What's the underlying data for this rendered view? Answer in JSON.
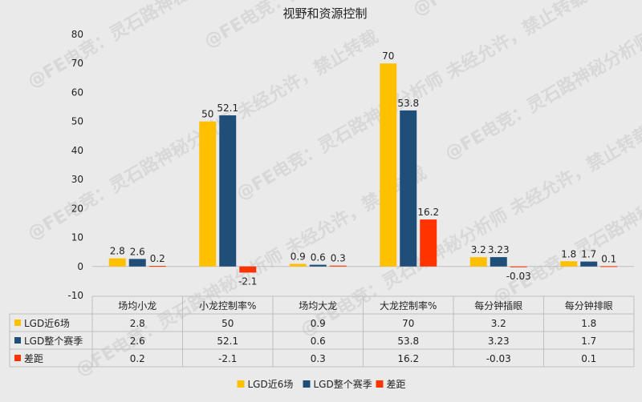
{
  "chart_data": {
    "type": "bar",
    "title": "视野和资源控制",
    "categories": [
      "场均小龙",
      "小龙控制率%",
      "场均大龙",
      "大龙控制率%",
      "每分钟插眼",
      "每分钟排眼"
    ],
    "series": [
      {
        "name": "LGD近6场",
        "color": "#ffc000",
        "values": [
          2.8,
          50,
          0.9,
          70,
          3.2,
          1.8
        ],
        "labels": [
          "2.8",
          "50",
          "0.9",
          "70",
          "3.2",
          "1.8"
        ]
      },
      {
        "name": "LGD整个赛季",
        "color": "#1f4e79",
        "values": [
          2.6,
          52.1,
          0.6,
          53.8,
          3.23,
          1.7
        ],
        "labels": [
          "2.6",
          "52.1",
          "0.6",
          "53.8",
          "3.23",
          "1.7"
        ]
      },
      {
        "name": "差距",
        "color": "#ff3300",
        "values": [
          0.2,
          -2.1,
          0.3,
          16.2,
          -0.03,
          0.1
        ],
        "labels": [
          "0.2",
          "-2.1",
          "0.3",
          "16.2",
          "-0.03",
          "0.1"
        ]
      }
    ],
    "ylim": [
      -10,
      80
    ],
    "yticks": [
      "-10",
      "0",
      "10",
      "20",
      "30",
      "40",
      "50",
      "60",
      "70",
      "80"
    ],
    "grid": false,
    "legend": "bottom",
    "data_table": true
  },
  "watermark": "@FE电竞：灵石路神秘分析师 未经允许，禁止转载"
}
